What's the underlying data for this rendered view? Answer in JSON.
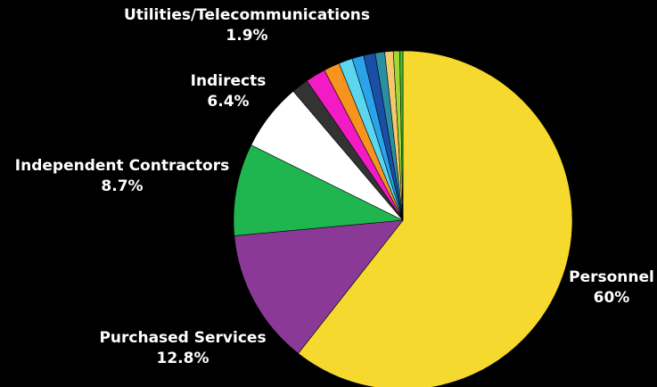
{
  "chart_data": {
    "type": "pie",
    "title": "",
    "labeled_slices": [
      {
        "name": "Personnel",
        "pct_text": "60%"
      },
      {
        "name": "Purchased Services",
        "pct_text": "12.8%"
      },
      {
        "name": "Independent Contractors",
        "pct_text": "8.7%"
      },
      {
        "name": "Indirects",
        "pct_text": "6.4%"
      },
      {
        "name": "Utilities/Telecommunications",
        "pct_text": "1.9%"
      }
    ],
    "slices": [
      {
        "name": "Personnel",
        "value": 60,
        "color": "#f5d92e"
      },
      {
        "name": "Purchased Services",
        "value": 12.8,
        "color": "#8a3a96"
      },
      {
        "name": "Independent Contractors",
        "value": 8.7,
        "color": "#1fb54f"
      },
      {
        "name": "",
        "value": 6.4,
        "color": "#ffffff"
      },
      {
        "name": "",
        "value": 1.6,
        "color": "#333333"
      },
      {
        "name": "",
        "value": 1.9,
        "color": "#f21bc6"
      },
      {
        "name": "",
        "value": 1.5,
        "color": "#f7941d"
      },
      {
        "name": "",
        "value": 1.3,
        "color": "#5bd6ee"
      },
      {
        "name": "",
        "value": 1.1,
        "color": "#2aa3ea"
      },
      {
        "name": "",
        "value": 1.1,
        "color": "#1a4fa8"
      },
      {
        "name": "",
        "value": 0.9,
        "color": "#2b8fa3"
      },
      {
        "name": "",
        "value": 0.8,
        "color": "#f3c96b"
      },
      {
        "name": "",
        "value": 0.6,
        "color": "#a3d636"
      },
      {
        "name": "",
        "value": 0.3,
        "color": "#3fbf2f"
      }
    ],
    "legend": "none"
  }
}
